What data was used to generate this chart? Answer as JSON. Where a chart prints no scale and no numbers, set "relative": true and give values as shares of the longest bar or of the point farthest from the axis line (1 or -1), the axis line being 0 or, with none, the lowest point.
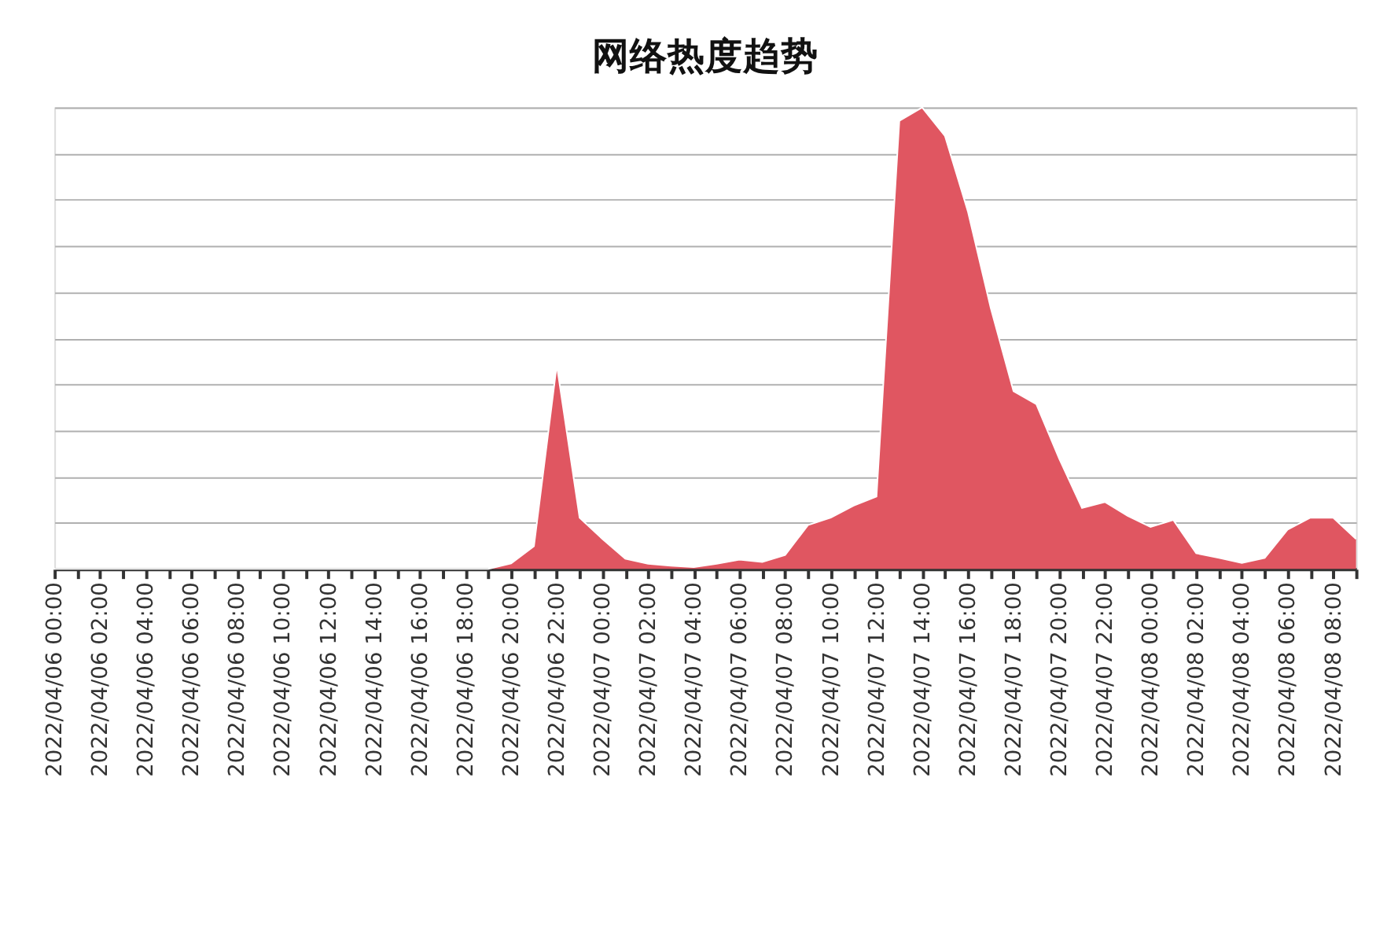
{
  "chart_data": {
    "type": "area",
    "title": "网络热度趋势",
    "relative": true,
    "grid": "y",
    "categories": [
      "2022/04/06 00:00",
      null,
      "2022/04/06 02:00",
      null,
      "2022/04/06 04:00",
      null,
      "2022/04/06 06:00",
      null,
      "2022/04/06 08:00",
      null,
      "2022/04/06 10:00",
      null,
      "2022/04/06 12:00",
      null,
      "2022/04/06 14:00",
      null,
      "2022/04/06 16:00",
      null,
      "2022/04/06 18:00",
      null,
      "2022/04/06 20:00",
      null,
      "2022/04/06 22:00",
      null,
      "2022/04/07 00:00",
      null,
      "2022/04/07 02:00",
      null,
      "2022/04/07 04:00",
      null,
      "2022/04/07 06:00",
      null,
      "2022/04/07 08:00",
      null,
      "2022/04/07 10:00",
      null,
      "2022/04/07 12:00",
      null,
      "2022/04/07 14:00",
      null,
      "2022/04/07 16:00",
      null,
      "2022/04/07 18:00",
      null,
      "2022/04/07 20:00",
      null,
      "2022/04/07 22:00",
      null,
      "2022/04/08 00:00",
      null,
      "2022/04/08 02:00",
      null,
      "2022/04/08 04:00",
      null,
      "2022/04/08 06:00",
      null,
      "2022/04/08 08:00",
      null
    ],
    "series": [
      {
        "color": "#e05661",
        "values": [
          0,
          0,
          0,
          0,
          0,
          0,
          0,
          0,
          0,
          0,
          0,
          0,
          0,
          0,
          0,
          0,
          0,
          0,
          0,
          0,
          0.012,
          0.049,
          0.442,
          0.111,
          0.065,
          0.022,
          0.011,
          0.007,
          0.004,
          0.011,
          0.02,
          0.015,
          0.03,
          0.095,
          0.111,
          0.137,
          0.157,
          0.971,
          1,
          0.938,
          0.775,
          0.566,
          0.385,
          0.357,
          0.239,
          0.132,
          0.145,
          0.115,
          0.091,
          0.106,
          0.034,
          0.024,
          0.013,
          0.024,
          0.085,
          0.111,
          0.111,
          0.065
        ]
      }
    ]
  }
}
